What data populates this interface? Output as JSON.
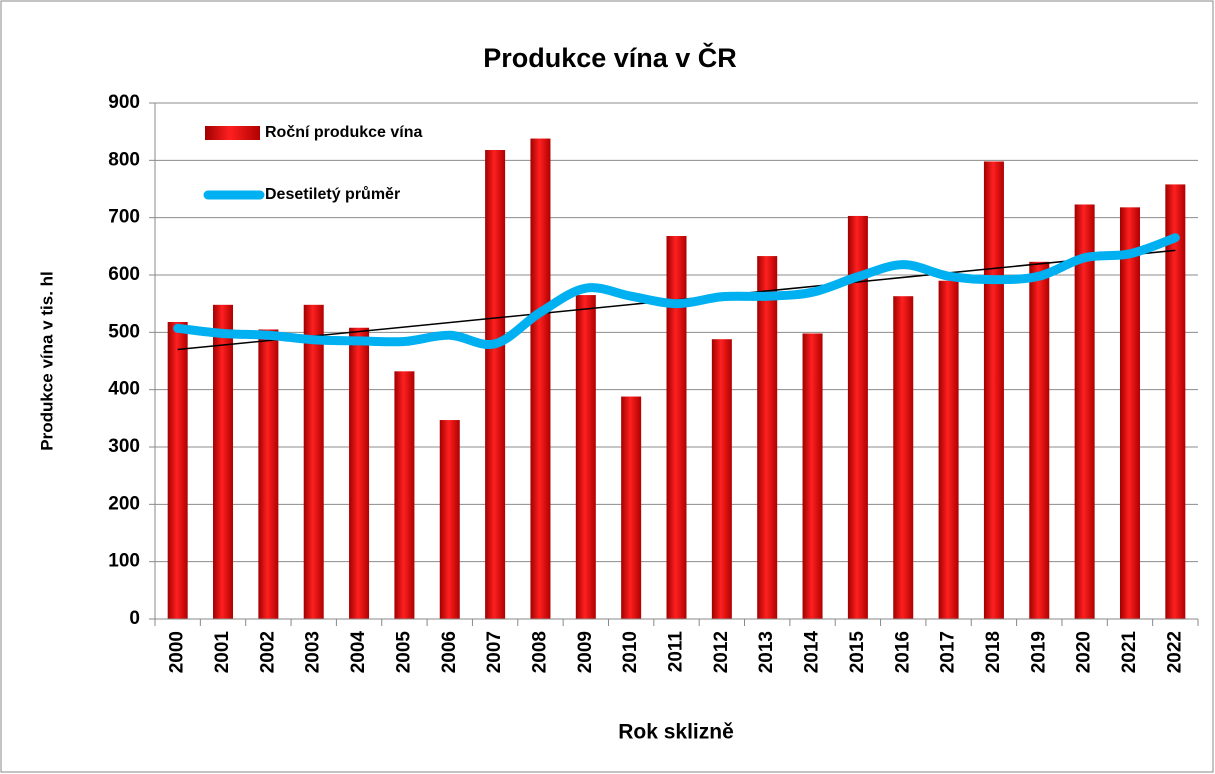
{
  "chart_data": {
    "type": "bar",
    "title": "Produkce vína v ČR",
    "x_label": "Rok sklizně",
    "y_label": "Produkce vína v tis. hl",
    "categories": [
      "2000",
      "2001",
      "2002",
      "2003",
      "2004",
      "2005",
      "2006",
      "2007",
      "2008",
      "2009",
      "2010",
      "2011",
      "2012",
      "2013",
      "2014",
      "2015",
      "2016",
      "2017",
      "2018",
      "2019",
      "2020",
      "2021",
      "2022"
    ],
    "series": [
      {
        "name": "Roční produkce vína",
        "type": "bar",
        "color": "#ff0000",
        "values": [
          518,
          548,
          505,
          548,
          508,
          432,
          347,
          818,
          838,
          565,
          388,
          668,
          488,
          633,
          498,
          703,
          563,
          590,
          798,
          623,
          723,
          718,
          758
        ]
      },
      {
        "name": "Desetiletý průměr",
        "type": "line",
        "color": "#00b0f0",
        "values": [
          507,
          498,
          495,
          487,
          485,
          484,
          495,
          480,
          535,
          577,
          563,
          550,
          562,
          563,
          570,
          597,
          618,
          598,
          592,
          598,
          630,
          637,
          665
        ]
      }
    ],
    "trend": {
      "color": "#000000",
      "values": [
        470,
        643
      ]
    },
    "ylim": [
      0,
      900
    ],
    "yticks": [
      0,
      100,
      200,
      300,
      400,
      500,
      600,
      700,
      800,
      900
    ],
    "grid": true,
    "legend": "upper left"
  }
}
